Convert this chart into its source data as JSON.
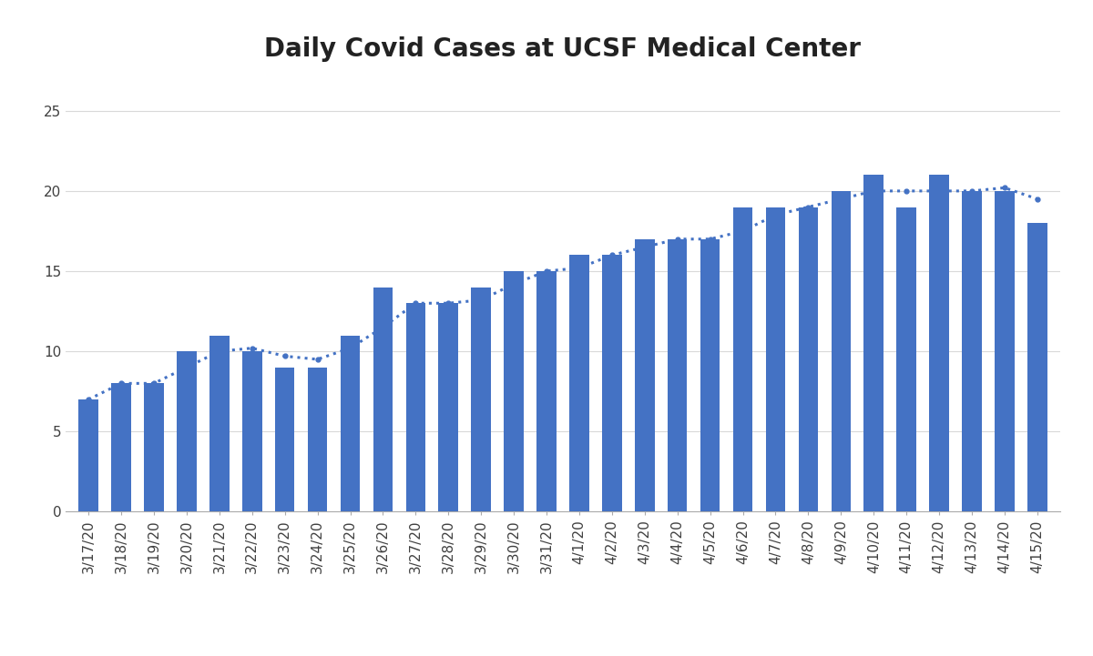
{
  "title": "Daily Covid Cases at UCSF Medical Center",
  "categories": [
    "3/17/20",
    "3/18/20",
    "3/19/20",
    "3/20/20",
    "3/21/20",
    "3/22/20",
    "3/23/20",
    "3/24/20",
    "3/25/20",
    "3/26/20",
    "3/27/20",
    "3/28/20",
    "3/29/20",
    "3/30/20",
    "3/31/20",
    "4/1/20",
    "4/2/20",
    "4/3/20",
    "4/4/20",
    "4/5/20",
    "4/6/20",
    "4/7/20",
    "4/8/20",
    "4/9/20",
    "4/10/20",
    "4/11/20",
    "4/12/20",
    "4/13/20",
    "4/14/20",
    "4/15/20"
  ],
  "bar_values": [
    7,
    8,
    8,
    10,
    11,
    10,
    9,
    9,
    11,
    14,
    13,
    13,
    14,
    15,
    15,
    16,
    16,
    17,
    17,
    17,
    19,
    19,
    19,
    20,
    21,
    19,
    21,
    20,
    20,
    18
  ],
  "dot_values": [
    7,
    8,
    8,
    9,
    10,
    10.2,
    9.7,
    9.5,
    10.2,
    11.5,
    13,
    13,
    13.2,
    14.2,
    15,
    15.2,
    16,
    16.5,
    17,
    17,
    17.5,
    18.5,
    19,
    19.5,
    20,
    20,
    20,
    20,
    20.2,
    19.5
  ],
  "bar_color": "#4472C4",
  "dot_color": "#4472C4",
  "background_color": "#FFFFFF",
  "ylim": [
    0,
    27
  ],
  "yticks": [
    0,
    5,
    10,
    15,
    20,
    25
  ],
  "title_fontsize": 20,
  "tick_fontsize": 11,
  "grid_color": "#D9D9D9",
  "bar_width": 0.6
}
